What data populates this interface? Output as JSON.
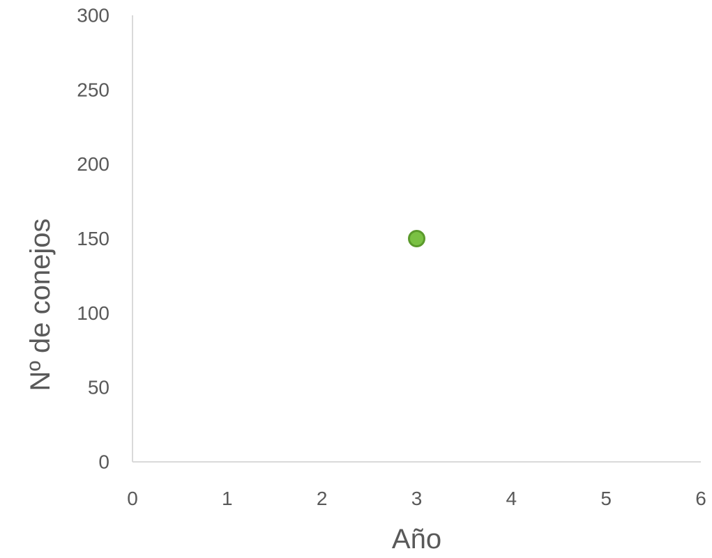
{
  "chart_data": {
    "type": "scatter",
    "title": "",
    "xlabel": "Año",
    "ylabel": "Nº de conejos",
    "xlim": [
      0,
      6
    ],
    "ylim": [
      0,
      300
    ],
    "x_ticks": [
      "0",
      "1",
      "2",
      "3",
      "4",
      "5",
      "6"
    ],
    "y_ticks": [
      "0",
      "50",
      "100",
      "150",
      "200",
      "250",
      "300"
    ],
    "grid": false,
    "legend": "none",
    "series": [
      {
        "points": [
          {
            "x": 3,
            "y": 150
          }
        ],
        "marker_color": "#7ac143",
        "marker_edge_color": "#5b9a2c"
      }
    ]
  }
}
